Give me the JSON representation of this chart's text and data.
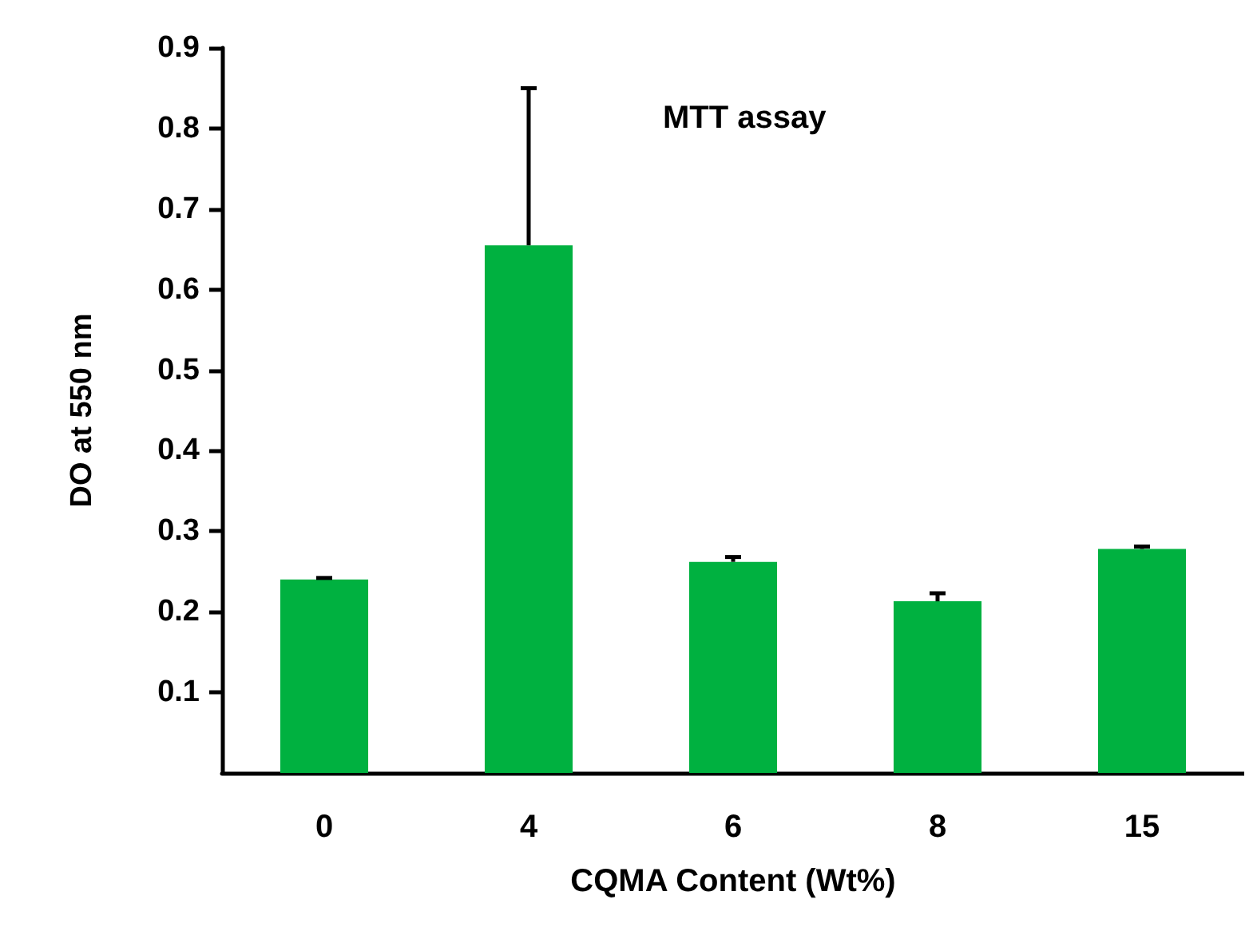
{
  "chart_data": {
    "type": "bar",
    "xlabel": "CQMA Content (Wt%)",
    "ylabel": "DO at 550 nm",
    "annotations": [
      "MTT assay"
    ],
    "categories": [
      "0",
      "4",
      "6",
      "8",
      "15"
    ],
    "values": [
      0.24,
      0.655,
      0.262,
      0.213,
      0.278
    ],
    "errors": [
      [
        0.24,
        0.242
      ],
      [
        0.655,
        0.85
      ],
      [
        0.262,
        0.268
      ],
      [
        0.213,
        0.223
      ],
      [
        0.278,
        0.281
      ]
    ],
    "color": "#00b140",
    "ylim": [
      0,
      0.9
    ],
    "yticks": [
      0.1,
      0.2,
      0.3,
      0.4,
      0.5,
      0.6,
      0.7,
      0.8,
      0.9
    ],
    "grid": false
  }
}
